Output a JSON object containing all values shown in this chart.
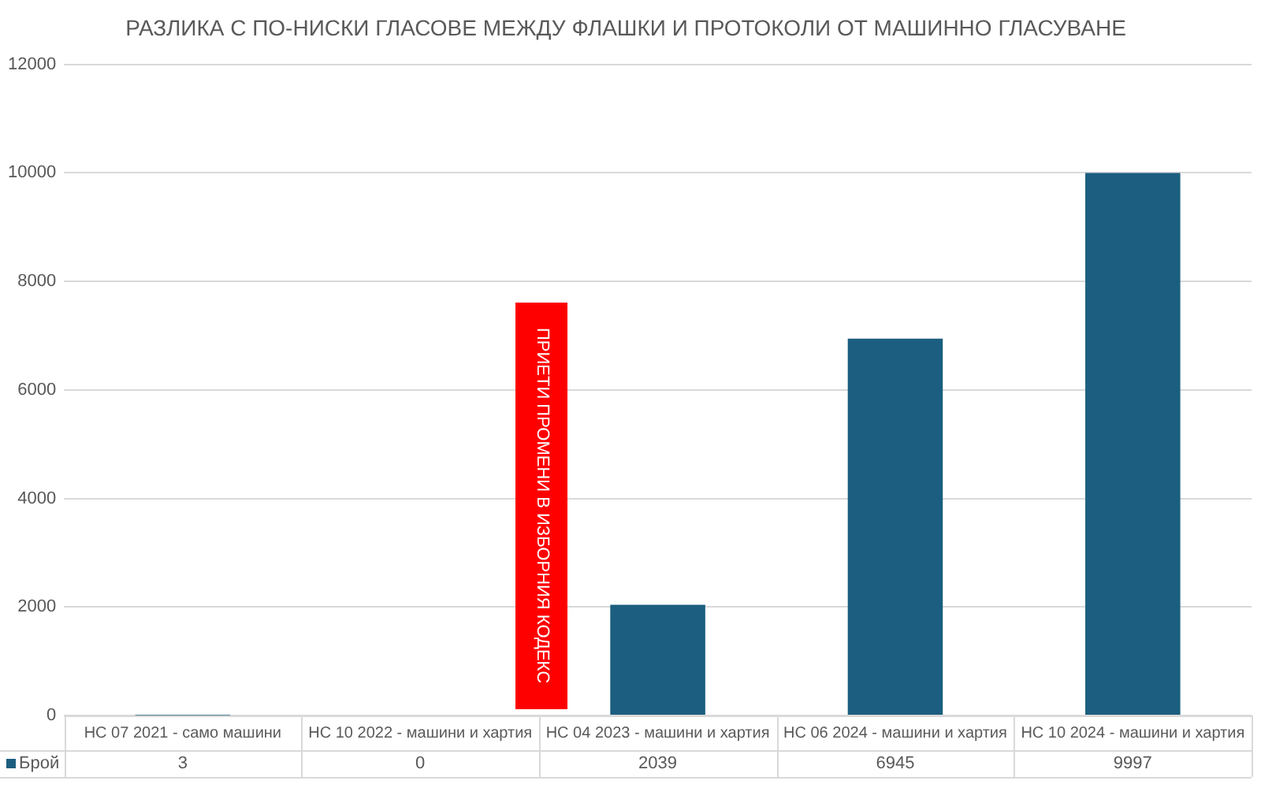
{
  "chart_data": {
    "type": "bar",
    "title": "РАЗЛИКА С ПО-НИСКИ ГЛАСОВЕ МЕЖДУ ФЛАШКИ И ПРОТОКОЛИ ОТ МАШИННО ГЛАСУВАНЕ",
    "categories": [
      "НС 07 2021 - само машини",
      "НС 10 2022 - машини и хартия",
      "НС 04 2023 - машини и хартия",
      "НС 06 2024 - машини и хартия",
      "НС 10 2024 - машини и хартия"
    ],
    "series": [
      {
        "name": "Брой",
        "color": "#1b5e7f",
        "values": [
          3,
          0,
          2039,
          6945,
          9997
        ]
      }
    ],
    "ylim": [
      0,
      12000
    ],
    "yticks": [
      0,
      2000,
      4000,
      6000,
      8000,
      10000,
      12000
    ],
    "grid": "y",
    "legend": "bottom left",
    "data_labels": true,
    "annotations": [
      "ПРИЕТИ ПРОМЕНИ В ИЗБОРНИЯ КОДЕКС"
    ]
  }
}
